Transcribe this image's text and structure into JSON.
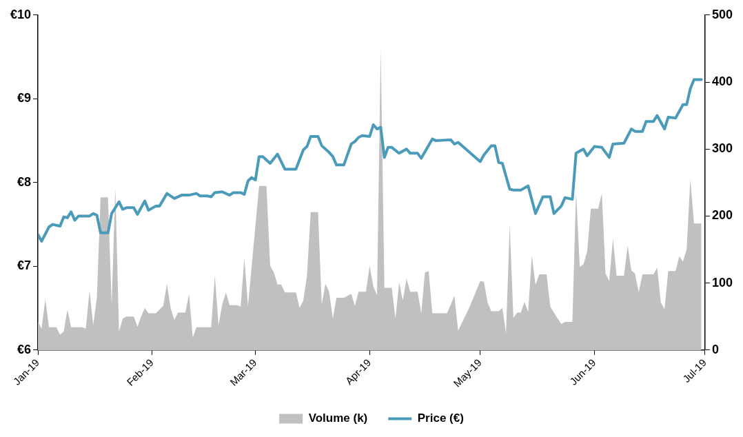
{
  "chart_data": {
    "type": "line",
    "legend": "bottom",
    "grid": false,
    "marker": "none",
    "xlim": [
      "2019-01-01",
      "2019-07-01"
    ],
    "xticks": [
      {
        "value": "2019-01",
        "label": "Jan-19"
      },
      {
        "value": "2019-02",
        "label": "Feb-19"
      },
      {
        "value": "2019-03",
        "label": "Mar-19"
      },
      {
        "value": "2019-04",
        "label": "Apr-19"
      },
      {
        "value": "2019-05",
        "label": "May-19"
      },
      {
        "value": "2019-06",
        "label": "Jun-19"
      },
      {
        "value": "2019-07",
        "label": "Jul-19"
      }
    ],
    "ylim": [
      6,
      10
    ],
    "yticks": [
      {
        "value": 6,
        "label": "€6"
      },
      {
        "value": 7,
        "label": "€7"
      },
      {
        "value": 8,
        "label": "€8"
      },
      {
        "value": 9,
        "label": "€9"
      },
      {
        "value": 10,
        "label": "€10"
      }
    ],
    "y2lim": [
      0,
      500
    ],
    "y2ticks": [
      0,
      100,
      200,
      300,
      400,
      500
    ],
    "series": [
      {
        "name": "Volume (k)",
        "type": "area",
        "axis": "y2",
        "color": "#c0c0c0",
        "x": [
          "2019-01-01",
          "2019-01-02",
          "2019-01-03",
          "2019-01-04",
          "2019-01-06",
          "2019-01-07",
          "2019-01-08",
          "2019-01-09",
          "2019-01-10",
          "2019-01-13",
          "2019-01-14",
          "2019-01-15",
          "2019-01-16",
          "2019-01-17",
          "2019-01-18",
          "2019-01-20",
          "2019-01-21",
          "2019-01-22",
          "2019-01-23",
          "2019-01-24",
          "2019-01-25",
          "2019-01-27",
          "2019-01-28",
          "2019-01-29",
          "2019-01-30",
          "2019-01-31",
          "2019-02-02",
          "2019-02-04",
          "2019-02-05",
          "2019-02-06",
          "2019-02-07",
          "2019-02-08",
          "2019-02-10",
          "2019-02-11",
          "2019-02-12",
          "2019-02-13",
          "2019-02-17",
          "2019-02-18",
          "2019-02-19",
          "2019-02-20",
          "2019-02-21",
          "2019-02-22",
          "2019-02-24",
          "2019-02-25",
          "2019-02-26",
          "2019-02-27",
          "2019-03-02",
          "2019-03-04",
          "2019-03-05",
          "2019-03-06",
          "2019-03-07",
          "2019-03-08",
          "2019-03-09",
          "2019-03-12",
          "2019-03-13",
          "2019-03-14",
          "2019-03-15",
          "2019-03-16",
          "2019-03-18",
          "2019-03-19",
          "2019-03-20",
          "2019-03-21",
          "2019-03-22",
          "2019-03-23",
          "2019-03-25",
          "2019-03-27",
          "2019-03-28",
          "2019-03-29",
          "2019-03-31",
          "2019-04-01",
          "2019-04-02",
          "2019-04-03",
          "2019-04-04",
          "2019-04-05",
          "2019-04-07",
          "2019-04-08",
          "2019-04-09",
          "2019-04-10",
          "2019-04-11",
          "2019-04-12",
          "2019-04-14",
          "2019-04-15",
          "2019-04-16",
          "2019-04-17",
          "2019-04-18",
          "2019-04-22",
          "2019-04-24",
          "2019-04-25",
          "2019-04-28",
          "2019-05-01",
          "2019-05-02",
          "2019-05-03",
          "2019-05-04",
          "2019-05-06",
          "2019-05-07",
          "2019-05-08",
          "2019-05-09",
          "2019-05-10",
          "2019-05-11",
          "2019-05-12",
          "2019-05-13",
          "2019-05-14",
          "2019-05-15",
          "2019-05-16",
          "2019-05-17",
          "2019-05-19",
          "2019-05-20",
          "2019-05-21",
          "2019-05-22",
          "2019-05-23",
          "2019-05-24",
          "2019-05-26",
          "2019-05-27",
          "2019-05-28",
          "2019-05-29",
          "2019-05-30",
          "2019-05-31",
          "2019-06-02",
          "2019-06-03",
          "2019-06-04",
          "2019-06-05",
          "2019-06-06",
          "2019-06-07",
          "2019-06-09",
          "2019-06-10",
          "2019-06-11",
          "2019-06-12",
          "2019-06-13",
          "2019-06-14",
          "2019-06-17",
          "2019-06-18",
          "2019-06-19",
          "2019-06-20",
          "2019-06-21",
          "2019-06-23",
          "2019-06-24",
          "2019-06-25",
          "2019-06-26",
          "2019-06-27",
          "2019-06-28",
          "2019-06-30"
        ],
        "values": [
          42,
          32,
          76,
          34,
          34,
          23,
          28,
          60,
          34,
          34,
          32,
          89,
          37,
          79,
          228,
          228,
          68,
          242,
          28,
          47,
          50,
          50,
          35,
          50,
          63,
          55,
          55,
          66,
          99,
          63,
          45,
          56,
          56,
          84,
          19,
          34,
          34,
          111,
          37,
          68,
          86,
          67,
          67,
          65,
          137,
          66,
          245,
          245,
          126,
          116,
          98,
          98,
          86,
          86,
          63,
          74,
          111,
          206,
          206,
          68,
          99,
          87,
          47,
          78,
          78,
          84,
          66,
          87,
          87,
          126,
          95,
          82,
          451,
          93,
          93,
          47,
          101,
          74,
          107,
          87,
          87,
          55,
          116,
          118,
          55,
          55,
          81,
          29,
          63,
          103,
          102,
          71,
          58,
          58,
          63,
          25,
          187,
          48,
          56,
          56,
          72,
          57,
          141,
          97,
          113,
          113,
          65,
          56,
          47,
          39,
          42,
          42,
          237,
          124,
          128,
          147,
          211,
          211,
          234,
          114,
          103,
          166,
          111,
          111,
          156,
          119,
          114,
          86,
          113,
          113,
          123,
          71,
          61,
          118,
          118,
          140,
          132,
          150,
          255,
          189,
          189
        ]
      },
      {
        "name": "Price (€)",
        "type": "line",
        "axis": "y",
        "color": "#4a9aba",
        "x": [
          "2019-01-01",
          "2019-01-02",
          "2019-01-04",
          "2019-01-05",
          "2019-01-07",
          "2019-01-08",
          "2019-01-09",
          "2019-01-10",
          "2019-01-11",
          "2019-01-12",
          "2019-01-15",
          "2019-01-16",
          "2019-01-17",
          "2019-01-18",
          "2019-01-20",
          "2019-01-21",
          "2019-01-23",
          "2019-01-24",
          "2019-01-25",
          "2019-01-27",
          "2019-01-28",
          "2019-01-30",
          "2019-01-31",
          "2019-02-02",
          "2019-02-03",
          "2019-02-05",
          "2019-02-07",
          "2019-02-09",
          "2019-02-11",
          "2019-02-13",
          "2019-02-14",
          "2019-02-16",
          "2019-02-17",
          "2019-02-18",
          "2019-02-20",
          "2019-02-22",
          "2019-02-23",
          "2019-02-25",
          "2019-02-26",
          "2019-02-27",
          "2019-02-28",
          "2019-03-01",
          "2019-03-02",
          "2019-03-03",
          "2019-03-05",
          "2019-03-07",
          "2019-03-09",
          "2019-03-12",
          "2019-03-14",
          "2019-03-15",
          "2019-03-16",
          "2019-03-18",
          "2019-03-19",
          "2019-03-21",
          "2019-03-22",
          "2019-03-23",
          "2019-03-25",
          "2019-03-27",
          "2019-03-28",
          "2019-03-29",
          "2019-03-30",
          "2019-04-01",
          "2019-04-02",
          "2019-04-03",
          "2019-04-04",
          "2019-04-05",
          "2019-04-06",
          "2019-04-07",
          "2019-04-09",
          "2019-04-11",
          "2019-04-12",
          "2019-04-14",
          "2019-04-15",
          "2019-04-18",
          "2019-04-19",
          "2019-04-23",
          "2019-04-24",
          "2019-04-25",
          "2019-05-01",
          "2019-05-02",
          "2019-05-04",
          "2019-05-05",
          "2019-05-06",
          "2019-05-07",
          "2019-05-09",
          "2019-05-10",
          "2019-05-12",
          "2019-05-14",
          "2019-05-16",
          "2019-05-18",
          "2019-05-20",
          "2019-05-21",
          "2019-05-23",
          "2019-05-24",
          "2019-05-26",
          "2019-05-27",
          "2019-05-29",
          "2019-05-30",
          "2019-06-01",
          "2019-06-03",
          "2019-06-05",
          "2019-06-06",
          "2019-06-09",
          "2019-06-11",
          "2019-06-12",
          "2019-06-14",
          "2019-06-15",
          "2019-06-17",
          "2019-06-18",
          "2019-06-20",
          "2019-06-21",
          "2019-06-23",
          "2019-06-25",
          "2019-06-26",
          "2019-06-27",
          "2019-06-28",
          "2019-06-30"
        ],
        "values": [
          7.38,
          7.3,
          7.47,
          7.5,
          7.48,
          7.59,
          7.58,
          7.65,
          7.55,
          7.6,
          7.6,
          7.63,
          7.61,
          7.4,
          7.4,
          7.63,
          7.77,
          7.68,
          7.7,
          7.7,
          7.62,
          7.78,
          7.67,
          7.72,
          7.72,
          7.87,
          7.81,
          7.85,
          7.85,
          7.87,
          7.84,
          7.84,
          7.83,
          7.88,
          7.89,
          7.85,
          7.88,
          7.88,
          7.86,
          8.02,
          8.06,
          8.03,
          8.31,
          8.31,
          8.23,
          8.34,
          8.16,
          8.16,
          8.39,
          8.43,
          8.55,
          8.55,
          8.44,
          8.36,
          8.31,
          8.21,
          8.21,
          8.46,
          8.49,
          8.54,
          8.56,
          8.55,
          8.69,
          8.64,
          8.66,
          8.3,
          8.42,
          8.42,
          8.35,
          8.4,
          8.35,
          8.35,
          8.29,
          8.52,
          8.5,
          8.51,
          8.46,
          8.48,
          8.25,
          8.33,
          8.44,
          8.44,
          8.24,
          8.23,
          7.92,
          7.91,
          7.91,
          7.96,
          7.63,
          7.83,
          7.83,
          7.63,
          7.72,
          7.82,
          7.8,
          8.35,
          8.4,
          8.32,
          8.43,
          8.42,
          8.3,
          8.46,
          8.47,
          8.64,
          8.61,
          8.61,
          8.73,
          8.73,
          8.8,
          8.64,
          8.78,
          8.77,
          8.93,
          8.93,
          9.12,
          9.23,
          9.23
        ]
      }
    ]
  }
}
